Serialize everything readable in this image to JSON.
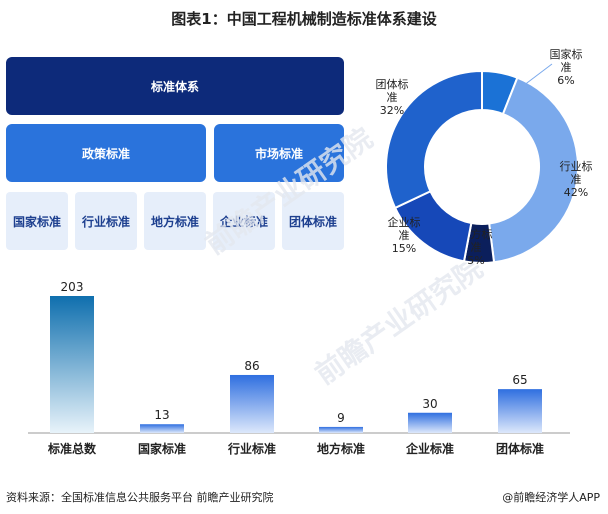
{
  "title": "图表1：中国工程机械制造标准体系建设",
  "hierarchy": {
    "root": "标准体系",
    "level2": [
      "政策标准",
      "市场标准"
    ],
    "level3": [
      "国家标准",
      "行业标准",
      "地方标准",
      "企业标准",
      "团体标准"
    ]
  },
  "watermark_text": "前瞻产业研究院",
  "chart_data": [
    {
      "type": "pie",
      "variant": "donut",
      "slices": [
        {
          "label_lines": [
            "国家标",
            "准"
          ],
          "pct_label": "6%",
          "value": 6,
          "color": "#1b72d6"
        },
        {
          "label_lines": [
            "行业标",
            "准"
          ],
          "pct_label": "42%",
          "value": 42,
          "color": "#7aa9ec"
        },
        {
          "label_lines": [
            "地方标",
            "准"
          ],
          "pct_label": "5%",
          "value": 5,
          "color": "#0b1f5c"
        },
        {
          "label_lines": [
            "企业标",
            "准"
          ],
          "pct_label": "15%",
          "value": 15,
          "color": "#1648b8"
        },
        {
          "label_lines": [
            "团体标",
            "准"
          ],
          "pct_label": "32%",
          "value": 32,
          "color": "#1f62cc"
        }
      ]
    },
    {
      "type": "bar",
      "categories": [
        "标准总数",
        "国家标准",
        "行业标准",
        "地方标准",
        "企业标准",
        "团体标准"
      ],
      "values": [
        203,
        13,
        86,
        9,
        30,
        65
      ],
      "colors": {
        "first": [
          "#0f6fae",
          "#e8f3fa"
        ],
        "others": [
          "#2f6fe0",
          "#dde8fb"
        ]
      }
    }
  ],
  "footer": {
    "source": "资料来源：全国标准信息公共服务平台 前瞻产业研究院",
    "brand": "@前瞻经济学人APP"
  }
}
